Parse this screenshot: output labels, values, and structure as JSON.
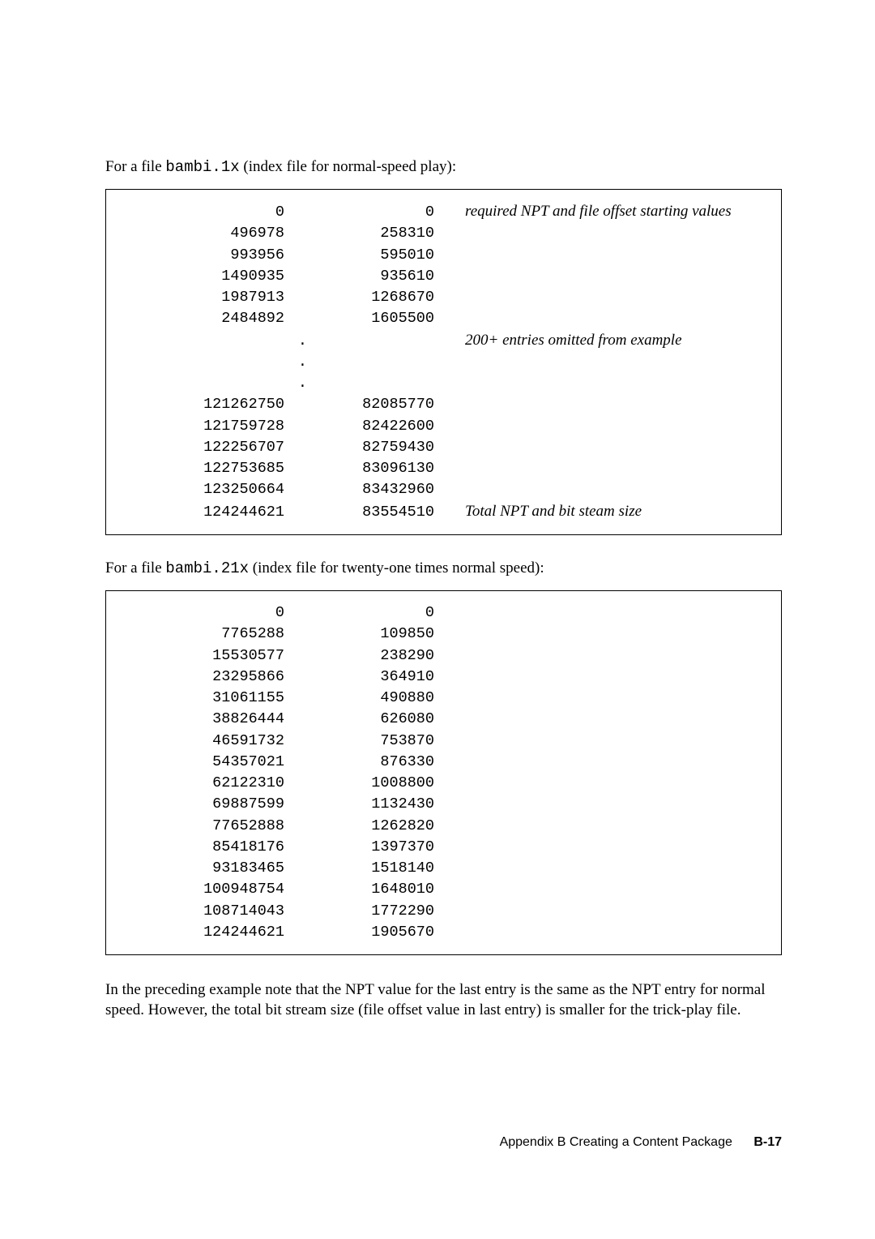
{
  "intro1_a": "For a file ",
  "intro1_mono": "bambi.1x",
  "intro1_b": " (index file for normal-speed play):",
  "table1": {
    "rows_top": [
      {
        "c1": "0",
        "c2": "0",
        "note": "required NPT and file offset starting values"
      },
      {
        "c1": "496978",
        "c2": "258310"
      },
      {
        "c1": "993956",
        "c2": "595010"
      },
      {
        "c1": "1490935",
        "c2": "935610"
      },
      {
        "c1": "1987913",
        "c2": "1268670"
      },
      {
        "c1": "2484892",
        "c2": "1605500"
      }
    ],
    "ellipsis_note": "200+ entries omitted from example",
    "rows_bottom": [
      {
        "c1": "121262750",
        "c2": "82085770"
      },
      {
        "c1": "121759728",
        "c2": "82422600"
      },
      {
        "c1": "122256707",
        "c2": "82759430"
      },
      {
        "c1": "122753685",
        "c2": "83096130"
      },
      {
        "c1": "123250664",
        "c2": "83432960"
      },
      {
        "c1": "124244621",
        "c2": "83554510",
        "note": "Total NPT and bit steam size"
      }
    ]
  },
  "intro2_a": "For a file ",
  "intro2_mono": "bambi.21x",
  "intro2_b": " (index file for twenty-one times normal speed):",
  "table2": {
    "rows": [
      {
        "c1": "0",
        "c2": "0"
      },
      {
        "c1": "7765288",
        "c2": "109850"
      },
      {
        "c1": "15530577",
        "c2": "238290"
      },
      {
        "c1": "23295866",
        "c2": "364910"
      },
      {
        "c1": "31061155",
        "c2": "490880"
      },
      {
        "c1": "38826444",
        "c2": "626080"
      },
      {
        "c1": "46591732",
        "c2": "753870"
      },
      {
        "c1": "54357021",
        "c2": "876330"
      },
      {
        "c1": "62122310",
        "c2": "1008800"
      },
      {
        "c1": "69887599",
        "c2": "1132430"
      },
      {
        "c1": "77652888",
        "c2": "1262820"
      },
      {
        "c1": "85418176",
        "c2": "1397370"
      },
      {
        "c1": "93183465",
        "c2": "1518140"
      },
      {
        "c1": "100948754",
        "c2": "1648010"
      },
      {
        "c1": "108714043",
        "c2": "1772290"
      },
      {
        "c1": "124244621",
        "c2": "1905670"
      }
    ]
  },
  "closing": "In the preceding example note that the NPT value for the last entry is the same as the NPT entry for normal speed.  However, the total bit stream size (file offset value in last entry) is smaller for the trick-play file.",
  "footer_label": "Appendix B     Creating a Content Package",
  "footer_page": "B-17",
  "dot": "."
}
